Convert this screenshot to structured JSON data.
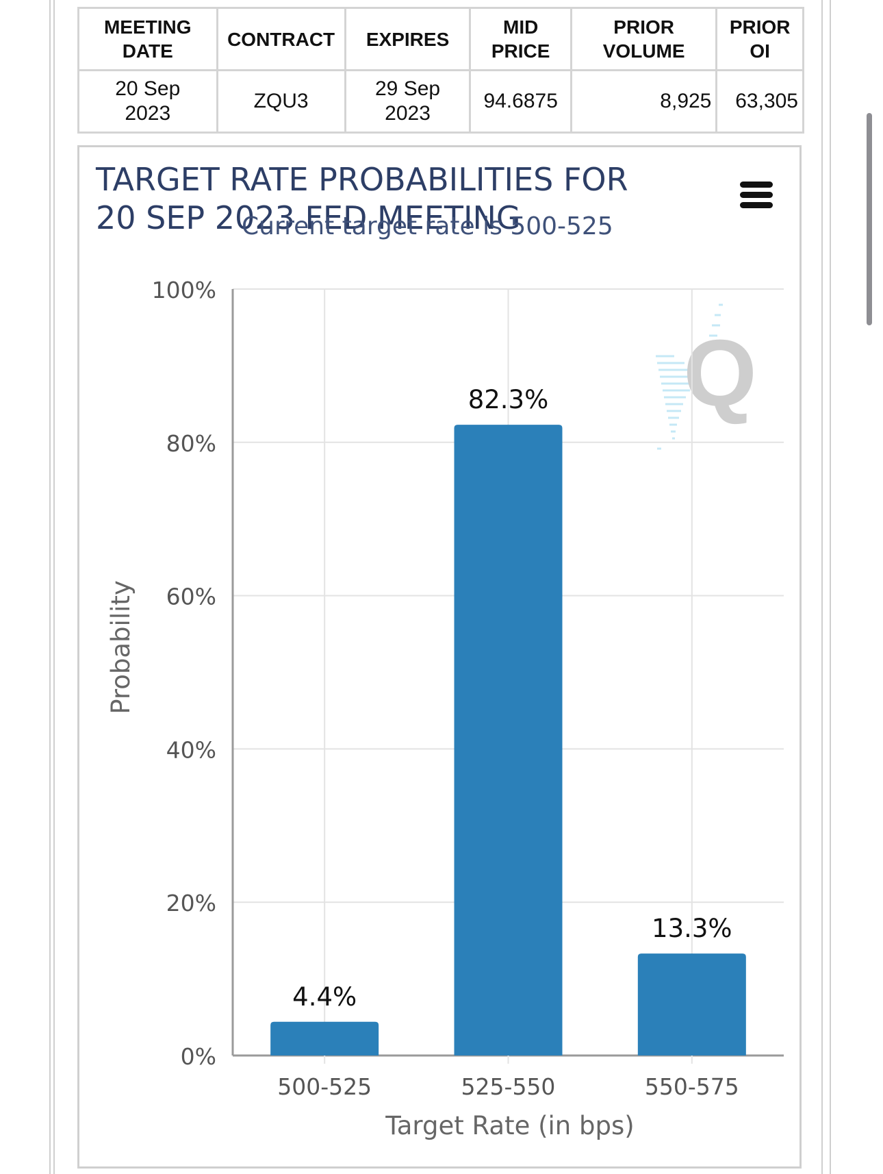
{
  "table": {
    "headers": [
      [
        "MEETING",
        "DATE"
      ],
      [
        "CONTRACT"
      ],
      [
        "EXPIRES"
      ],
      [
        "MID",
        "PRICE"
      ],
      [
        "PRIOR",
        "VOLUME"
      ],
      [
        "PRIOR",
        "OI"
      ]
    ],
    "row": {
      "meeting_date": [
        "20 Sep",
        "2023"
      ],
      "contract": "ZQU3",
      "expires": [
        "29 Sep",
        "2023"
      ],
      "mid_price": "94.6875",
      "prior_volume": "8,925",
      "prior_oi": "63,305"
    }
  },
  "chart_data": {
    "type": "bar",
    "title_lines": [
      "TARGET RATE PROBABILITIES FOR",
      "20 SEP 2023 FED MEETING"
    ],
    "subtitle": "Current target rate is 500-525",
    "xlabel": "Target Rate (in bps)",
    "ylabel": "Probability",
    "categories": [
      "500-525",
      "525-550",
      "550-575"
    ],
    "values": [
      4.4,
      82.3,
      13.3
    ],
    "value_labels": [
      "4.4%",
      "82.3%",
      "13.3%"
    ],
    "ylim": [
      0,
      100
    ],
    "yticks": [
      0,
      20,
      40,
      60,
      80,
      100
    ],
    "ytick_labels": [
      "0%",
      "20%",
      "40%",
      "60%",
      "80%",
      "100%"
    ],
    "grid": true,
    "bar_color": "#2b80b9",
    "title_color": "#2d3e66"
  },
  "menu_icon": "hamburger-menu-icon",
  "watermark_icon": "quikstrike-q-logo"
}
